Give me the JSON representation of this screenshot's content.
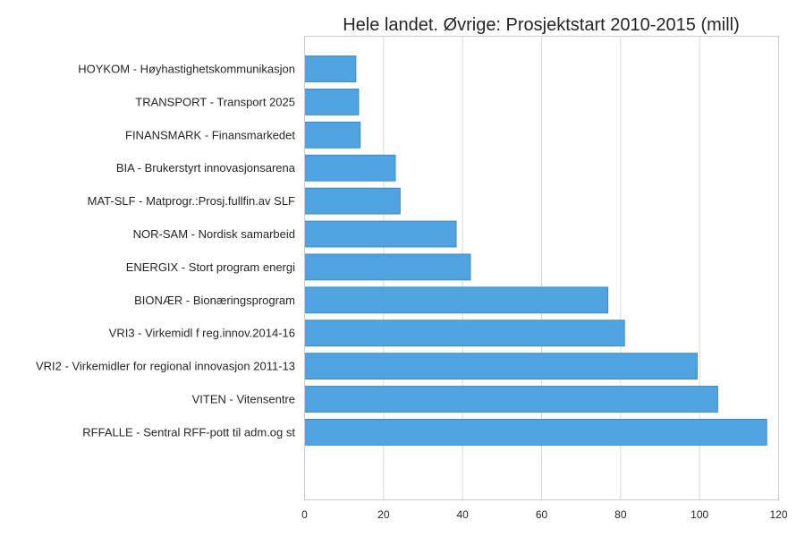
{
  "chart_data": {
    "type": "bar",
    "orientation": "horizontal",
    "title": "Hele landet. Øvrige: Prosjektstart 2010-2015 (mill)",
    "xlabel": "",
    "ylabel": "",
    "xlim": [
      0,
      120
    ],
    "x_ticks": [
      "0",
      "20",
      "40",
      "60",
      "80",
      "100",
      "120"
    ],
    "grid": true,
    "bar_color": "#4fa3e0",
    "bar_edge_color": "#3f7fae",
    "categories": [
      "HOYKOM - Høyhastighetskommunikasjon",
      "TRANSPORT - Transport 2025",
      "FINANSMARK - Finansmarkedet",
      "BIA - Brukerstyrt innovasjonsarena",
      "MAT-SLF - Matprogr.:Prosj.fullfin.av SLF",
      "NOR-SAM - Nordisk samarbeid",
      "ENERGIX - Stort program energi",
      "BIONÆR - Bionæringsprogram",
      "VRI3 - Virkemidl f reg.innov.2014-16",
      "VRI2 - Virkemidler for regional innovasjon 2011-13",
      "VITEN - Vitensentre",
      "RFFALLE - Sentral RFF-pott til adm.og st"
    ],
    "values": [
      13,
      13.7,
      14.1,
      23,
      24.2,
      38.4,
      42,
      76.8,
      81,
      99.4,
      104.6,
      117
    ]
  }
}
